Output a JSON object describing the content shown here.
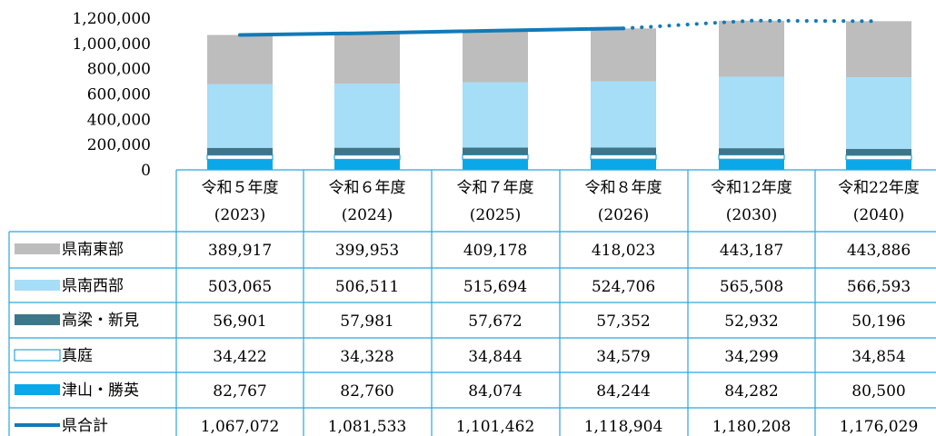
{
  "chart_data": {
    "type": "bar",
    "stacked": true,
    "categories": [
      "令和５年度\n(2023)",
      "令和６年度\n(2024)",
      "令和７年度\n(2025)",
      "令和８年度\n(2026)",
      "令和12年度\n(2030)",
      "令和22年度\n(2040)"
    ],
    "category_lines": [
      [
        "令和５年度",
        "(2023)"
      ],
      [
        "令和６年度",
        "(2024)"
      ],
      [
        "令和７年度",
        "(2025)"
      ],
      [
        "令和８年度",
        "(2026)"
      ],
      [
        "令和12年度",
        "(2030)"
      ],
      [
        "令和22年度",
        "(2040)"
      ]
    ],
    "yticks": [
      "0",
      "200,000",
      "400,000",
      "600,000",
      "800,000",
      "1,000,000",
      "1,200,000"
    ],
    "ylim": [
      0,
      1200000
    ],
    "stack_order": [
      "津山・勝英",
      "真庭",
      "高梁・新見",
      "県南西部",
      "県南東部"
    ],
    "series": [
      {
        "name": "県南東部",
        "type": "bar",
        "color": "#bdbdbd",
        "values": [
          389917,
          399953,
          409178,
          418023,
          443187,
          443886
        ],
        "labels": [
          "389,917",
          "399,953",
          "409,178",
          "418,023",
          "443,187",
          "443,886"
        ]
      },
      {
        "name": "県南西部",
        "type": "bar",
        "color": "#a6ddf7",
        "values": [
          503065,
          506511,
          515694,
          524706,
          565508,
          566593
        ],
        "labels": [
          "503,065",
          "506,511",
          "515,694",
          "524,706",
          "565,508",
          "566,593"
        ]
      },
      {
        "name": "高梁・新見",
        "type": "bar",
        "color": "#3d7688",
        "values": [
          56901,
          57981,
          57672,
          57352,
          52932,
          50196
        ],
        "labels": [
          "56,901",
          "57,981",
          "57,672",
          "57,352",
          "52,932",
          "50,196"
        ]
      },
      {
        "name": "真庭",
        "type": "bar",
        "color": "#ffffff",
        "values": [
          34422,
          34328,
          34844,
          34579,
          34299,
          34854
        ],
        "labels": [
          "34,422",
          "34,328",
          "34,844",
          "34,579",
          "34,299",
          "34,854"
        ]
      },
      {
        "name": "津山・勝英",
        "type": "bar",
        "color": "#0aa8e8",
        "values": [
          82767,
          82760,
          84074,
          84244,
          84282,
          80500
        ],
        "labels": [
          "82,767",
          "82,760",
          "84,074",
          "84,244",
          "84,282",
          "80,500"
        ]
      },
      {
        "name": "県合計",
        "type": "line",
        "color": "#127ab8",
        "values": [
          1067072,
          1081533,
          1101462,
          1118904,
          1180208,
          1176029
        ],
        "labels": [
          "1,067,072",
          "1,081,533",
          "1,101,462",
          "1,118,904",
          "1,180,208",
          "1,176,029"
        ],
        "dotted_from_index": 3
      }
    ],
    "grid": false,
    "legend": "table-left"
  }
}
